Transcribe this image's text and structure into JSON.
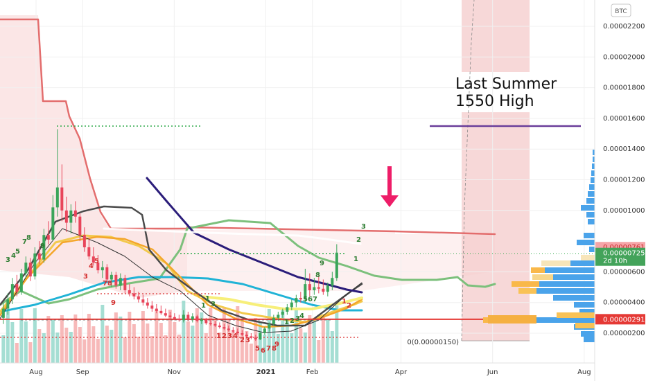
{
  "chart_data": {
    "type": "candlestick",
    "currency_badge": "BTC",
    "y_axis": {
      "ticks": [
        {
          "v": 2.2e-05,
          "label": "0.00002200"
        },
        {
          "v": 2e-05,
          "label": "0.00002000"
        },
        {
          "v": 1.8e-05,
          "label": "0.00001800"
        },
        {
          "v": 1.6e-05,
          "label": "0.00001600"
        },
        {
          "v": 1.4e-05,
          "label": "0.00001400"
        },
        {
          "v": 1.2e-05,
          "label": "0.00001200"
        },
        {
          "v": 1e-05,
          "label": "0.00001000"
        },
        {
          "v": 6e-06,
          "label": "0.00000600"
        },
        {
          "v": 4e-06,
          "label": "0.00000400"
        },
        {
          "v": 2e-06,
          "label": "0.00000200"
        }
      ],
      "ylim": [
        5e-07,
        2.35e-05
      ]
    },
    "x_axis": {
      "ticks": [
        {
          "date": "2020-08-01",
          "label": "Aug"
        },
        {
          "date": "2020-09-01",
          "label": "Sep"
        },
        {
          "date": "2020-11-01",
          "label": "Nov"
        },
        {
          "date": "2021-01-01",
          "label": "2021"
        },
        {
          "date": "2021-02-01",
          "label": "Feb"
        },
        {
          "date": "2021-04-01",
          "label": "Apr"
        },
        {
          "date": "2021-06-01",
          "label": "Jun"
        },
        {
          "date": "2021-08-01",
          "label": "Aug"
        }
      ],
      "xlim": [
        "2020-07-08",
        "2021-08-08"
      ]
    },
    "annotation": {
      "line1": "Last Summer",
      "line2": "1550 High",
      "level": 1.55e-05
    },
    "price_labels": [
      {
        "value": 7.61e-06,
        "text": "0.00000761",
        "color": "#f5a5a8",
        "text_color": "#c62828"
      },
      {
        "value": 7.25e-06,
        "text": "0.00000725",
        "sub": "2d 10h",
        "color": "#43a35a",
        "text_color": "#ffffff"
      },
      {
        "value": 2.91e-06,
        "text": "0.00000291",
        "color": "#e53935",
        "text_color": "#ffffff"
      }
    ],
    "fib_label": "0(0.00000150)",
    "fib_value": 1.5e-06,
    "candles": [
      {
        "d": "2020-07-10",
        "o": 3.0,
        "h": 4.0,
        "l": 2.6,
        "c": 3.6
      },
      {
        "d": "2020-07-13",
        "o": 3.6,
        "h": 4.6,
        "l": 3.2,
        "c": 4.2
      },
      {
        "d": "2020-07-16",
        "o": 4.2,
        "h": 5.6,
        "l": 3.9,
        "c": 5.2
      },
      {
        "d": "2020-07-19",
        "o": 5.2,
        "h": 5.8,
        "l": 4.4,
        "c": 4.7
      },
      {
        "d": "2020-07-22",
        "o": 4.7,
        "h": 6.2,
        "l": 4.5,
        "c": 5.9
      },
      {
        "d": "2020-07-25",
        "o": 5.9,
        "h": 7.0,
        "l": 5.6,
        "c": 6.6
      },
      {
        "d": "2020-07-28",
        "o": 6.6,
        "h": 6.9,
        "l": 5.4,
        "c": 5.7
      },
      {
        "d": "2020-07-31",
        "o": 5.7,
        "h": 7.6,
        "l": 5.5,
        "c": 7.2
      },
      {
        "d": "2020-08-03",
        "o": 7.2,
        "h": 8.0,
        "l": 6.5,
        "c": 6.8
      },
      {
        "d": "2020-08-06",
        "o": 6.8,
        "h": 8.8,
        "l": 6.6,
        "c": 8.4
      },
      {
        "d": "2020-08-09",
        "o": 8.4,
        "h": 9.3,
        "l": 7.8,
        "c": 8.1
      },
      {
        "d": "2020-08-12",
        "o": 8.1,
        "h": 11.0,
        "l": 8.0,
        "c": 10.2
      },
      {
        "d": "2020-08-15",
        "o": 10.2,
        "h": 15.3,
        "l": 9.6,
        "c": 11.5
      },
      {
        "d": "2020-08-18",
        "o": 11.5,
        "h": 13.0,
        "l": 9.3,
        "c": 10.0
      },
      {
        "d": "2020-08-21",
        "o": 10.0,
        "h": 10.9,
        "l": 8.6,
        "c": 9.2
      },
      {
        "d": "2020-08-24",
        "o": 9.2,
        "h": 10.4,
        "l": 8.5,
        "c": 10.0
      },
      {
        "d": "2020-08-27",
        "o": 10.0,
        "h": 10.6,
        "l": 9.2,
        "c": 9.6
      },
      {
        "d": "2020-08-30",
        "o": 9.6,
        "h": 9.8,
        "l": 8.0,
        "c": 8.4
      },
      {
        "d": "2020-09-02",
        "o": 8.4,
        "h": 8.9,
        "l": 7.3,
        "c": 7.6
      },
      {
        "d": "2020-09-05",
        "o": 7.6,
        "h": 8.2,
        "l": 6.8,
        "c": 7.0
      },
      {
        "d": "2020-09-08",
        "o": 7.0,
        "h": 7.6,
        "l": 6.4,
        "c": 6.6
      },
      {
        "d": "2020-09-11",
        "o": 6.6,
        "h": 7.1,
        "l": 5.9,
        "c": 6.1
      },
      {
        "d": "2020-09-14",
        "o": 6.1,
        "h": 6.7,
        "l": 5.6,
        "c": 6.3
      },
      {
        "d": "2020-09-17",
        "o": 6.3,
        "h": 6.5,
        "l": 5.3,
        "c": 5.5
      },
      {
        "d": "2020-09-20",
        "o": 5.5,
        "h": 6.0,
        "l": 5.0,
        "c": 5.8
      },
      {
        "d": "2020-09-23",
        "o": 5.8,
        "h": 6.0,
        "l": 4.9,
        "c": 5.1
      },
      {
        "d": "2020-09-26",
        "o": 5.1,
        "h": 5.9,
        "l": 4.8,
        "c": 5.6
      },
      {
        "d": "2020-09-29",
        "o": 5.6,
        "h": 5.8,
        "l": 4.6,
        "c": 4.8
      },
      {
        "d": "2020-10-02",
        "o": 4.8,
        "h": 5.2,
        "l": 4.4,
        "c": 4.6
      },
      {
        "d": "2020-10-05",
        "o": 4.6,
        "h": 5.0,
        "l": 4.2,
        "c": 4.4
      },
      {
        "d": "2020-10-08",
        "o": 4.4,
        "h": 4.7,
        "l": 4.0,
        "c": 4.2
      },
      {
        "d": "2020-10-11",
        "o": 4.2,
        "h": 4.5,
        "l": 3.8,
        "c": 4.0
      },
      {
        "d": "2020-10-14",
        "o": 4.0,
        "h": 4.3,
        "l": 3.6,
        "c": 3.8
      },
      {
        "d": "2020-10-17",
        "o": 3.8,
        "h": 4.1,
        "l": 3.4,
        "c": 3.6
      },
      {
        "d": "2020-10-20",
        "o": 3.6,
        "h": 3.9,
        "l": 3.3,
        "c": 3.45
      },
      {
        "d": "2020-10-23",
        "o": 3.45,
        "h": 3.8,
        "l": 3.2,
        "c": 3.3
      },
      {
        "d": "2020-10-26",
        "o": 3.3,
        "h": 3.6,
        "l": 3.05,
        "c": 3.15
      },
      {
        "d": "2020-10-29",
        "o": 3.15,
        "h": 3.4,
        "l": 2.95,
        "c": 3.05
      },
      {
        "d": "2020-11-01",
        "o": 3.05,
        "h": 3.3,
        "l": 2.85,
        "c": 2.95
      },
      {
        "d": "2020-11-04",
        "o": 2.95,
        "h": 3.2,
        "l": 2.75,
        "c": 2.85
      },
      {
        "d": "2020-11-07",
        "o": 2.85,
        "h": 3.5,
        "l": 2.7,
        "c": 3.2
      },
      {
        "d": "2020-11-10",
        "o": 3.2,
        "h": 3.4,
        "l": 2.8,
        "c": 2.9
      },
      {
        "d": "2020-11-13",
        "o": 2.9,
        "h": 3.3,
        "l": 2.7,
        "c": 3.1
      },
      {
        "d": "2020-11-16",
        "o": 3.1,
        "h": 3.2,
        "l": 2.7,
        "c": 2.8
      },
      {
        "d": "2020-11-19",
        "o": 2.8,
        "h": 3.0,
        "l": 2.6,
        "c": 2.9
      },
      {
        "d": "2020-11-22",
        "o": 2.9,
        "h": 3.0,
        "l": 2.55,
        "c": 2.65
      },
      {
        "d": "2020-11-25",
        "o": 2.65,
        "h": 2.9,
        "l": 2.5,
        "c": 2.6
      },
      {
        "d": "2020-11-28",
        "o": 2.6,
        "h": 2.8,
        "l": 2.4,
        "c": 2.5
      },
      {
        "d": "2020-12-01",
        "o": 2.5,
        "h": 2.7,
        "l": 2.3,
        "c": 2.4
      },
      {
        "d": "2020-12-04",
        "o": 2.4,
        "h": 2.6,
        "l": 2.2,
        "c": 2.3
      },
      {
        "d": "2020-12-07",
        "o": 2.3,
        "h": 2.5,
        "l": 2.1,
        "c": 2.2
      },
      {
        "d": "2020-12-10",
        "o": 2.2,
        "h": 2.4,
        "l": 2.0,
        "c": 2.1
      },
      {
        "d": "2020-12-13",
        "o": 2.1,
        "h": 2.3,
        "l": 1.9,
        "c": 2.0
      },
      {
        "d": "2020-12-16",
        "o": 2.0,
        "h": 2.2,
        "l": 1.8,
        "c": 1.9
      },
      {
        "d": "2020-12-19",
        "o": 1.9,
        "h": 2.1,
        "l": 1.7,
        "c": 1.8
      },
      {
        "d": "2020-12-22",
        "o": 1.8,
        "h": 2.0,
        "l": 1.6,
        "c": 1.7
      },
      {
        "d": "2020-12-25",
        "o": 1.7,
        "h": 1.9,
        "l": 1.5,
        "c": 1.6
      },
      {
        "d": "2020-12-28",
        "o": 1.6,
        "h": 2.1,
        "l": 1.55,
        "c": 2.0
      },
      {
        "d": "2020-12-31",
        "o": 2.0,
        "h": 2.4,
        "l": 1.9,
        "c": 2.3
      },
      {
        "d": "2021-01-03",
        "o": 2.3,
        "h": 2.7,
        "l": 2.1,
        "c": 2.6
      },
      {
        "d": "2021-01-06",
        "o": 2.6,
        "h": 3.2,
        "l": 2.5,
        "c": 3.0
      },
      {
        "d": "2021-01-09",
        "o": 3.0,
        "h": 3.4,
        "l": 2.8,
        "c": 3.2
      },
      {
        "d": "2021-01-12",
        "o": 3.2,
        "h": 3.6,
        "l": 3.0,
        "c": 3.4
      },
      {
        "d": "2021-01-15",
        "o": 3.4,
        "h": 3.9,
        "l": 3.2,
        "c": 3.7
      },
      {
        "d": "2021-01-18",
        "o": 3.7,
        "h": 4.2,
        "l": 3.5,
        "c": 4.0
      },
      {
        "d": "2021-01-21",
        "o": 4.0,
        "h": 4.5,
        "l": 3.7,
        "c": 4.3
      },
      {
        "d": "2021-01-24",
        "o": 4.3,
        "h": 4.7,
        "l": 4.0,
        "c": 4.2
      },
      {
        "d": "2021-01-27",
        "o": 4.2,
        "h": 6.2,
        "l": 4.0,
        "c": 5.2
      },
      {
        "d": "2021-01-30",
        "o": 5.2,
        "h": 5.9,
        "l": 4.4,
        "c": 4.8
      },
      {
        "d": "2021-02-02",
        "o": 4.8,
        "h": 5.6,
        "l": 4.5,
        "c": 5.0
      },
      {
        "d": "2021-02-05",
        "o": 5.0,
        "h": 5.8,
        "l": 4.6,
        "c": 4.9
      },
      {
        "d": "2021-02-08",
        "o": 4.9,
        "h": 5.5,
        "l": 4.5,
        "c": 4.7
      },
      {
        "d": "2021-02-11",
        "o": 4.7,
        "h": 5.3,
        "l": 4.4,
        "c": 5.1
      },
      {
        "d": "2021-02-14",
        "o": 5.1,
        "h": 6.0,
        "l": 4.8,
        "c": 5.6
      },
      {
        "d": "2021-02-17",
        "o": 5.6,
        "h": 7.8,
        "l": 5.4,
        "c": 7.25
      }
    ]
  }
}
